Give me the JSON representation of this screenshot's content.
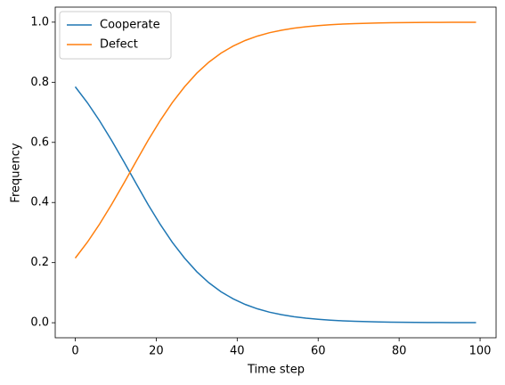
{
  "chart_data": {
    "type": "line",
    "xlabel": "Time step",
    "ylabel": "Frequency",
    "x": [
      0,
      3,
      6,
      9,
      12,
      15,
      18,
      21,
      24,
      27,
      30,
      33,
      36,
      39,
      42,
      45,
      48,
      51,
      54,
      57,
      60,
      63,
      66,
      69,
      72,
      75,
      78,
      81,
      84,
      87,
      90,
      93,
      96,
      99
    ],
    "series": [
      {
        "name": "Cooperate",
        "color": "#1f77b4",
        "values": [
          0.785,
          0.732,
          0.672,
          0.606,
          0.536,
          0.464,
          0.393,
          0.327,
          0.267,
          0.215,
          0.17,
          0.133,
          0.103,
          0.0795,
          0.0608,
          0.0463,
          0.0351,
          0.0266,
          0.02,
          0.0151,
          0.0114,
          0.0085,
          0.0064,
          0.0048,
          0.0036,
          0.0027,
          0.002,
          0.0015,
          0.0011,
          0.0009,
          0.0006,
          0.0005,
          0.0004,
          0.0003
        ]
      },
      {
        "name": "Defect",
        "color": "#ff7f0e",
        "values": [
          0.215,
          0.268,
          0.328,
          0.394,
          0.464,
          0.536,
          0.607,
          0.673,
          0.733,
          0.785,
          0.83,
          0.867,
          0.897,
          0.9205,
          0.9392,
          0.9537,
          0.9649,
          0.9734,
          0.98,
          0.9849,
          0.9886,
          0.9915,
          0.9936,
          0.9952,
          0.9964,
          0.9973,
          0.998,
          0.9985,
          0.9989,
          0.9991,
          0.9994,
          0.9995,
          0.9996,
          0.9997
        ]
      }
    ],
    "xlim": [
      -4.95,
      103.95
    ],
    "xticks": [
      0,
      20,
      40,
      60,
      80,
      100
    ],
    "ylim": [
      -0.05,
      1.05
    ],
    "yticks": [
      {
        "value": 0,
        "label": "0.0"
      },
      0.2,
      0.4,
      0.6,
      0.8,
      {
        "value": 1,
        "label": "1.0"
      }
    ],
    "legend": "upper left",
    "grid": false
  }
}
